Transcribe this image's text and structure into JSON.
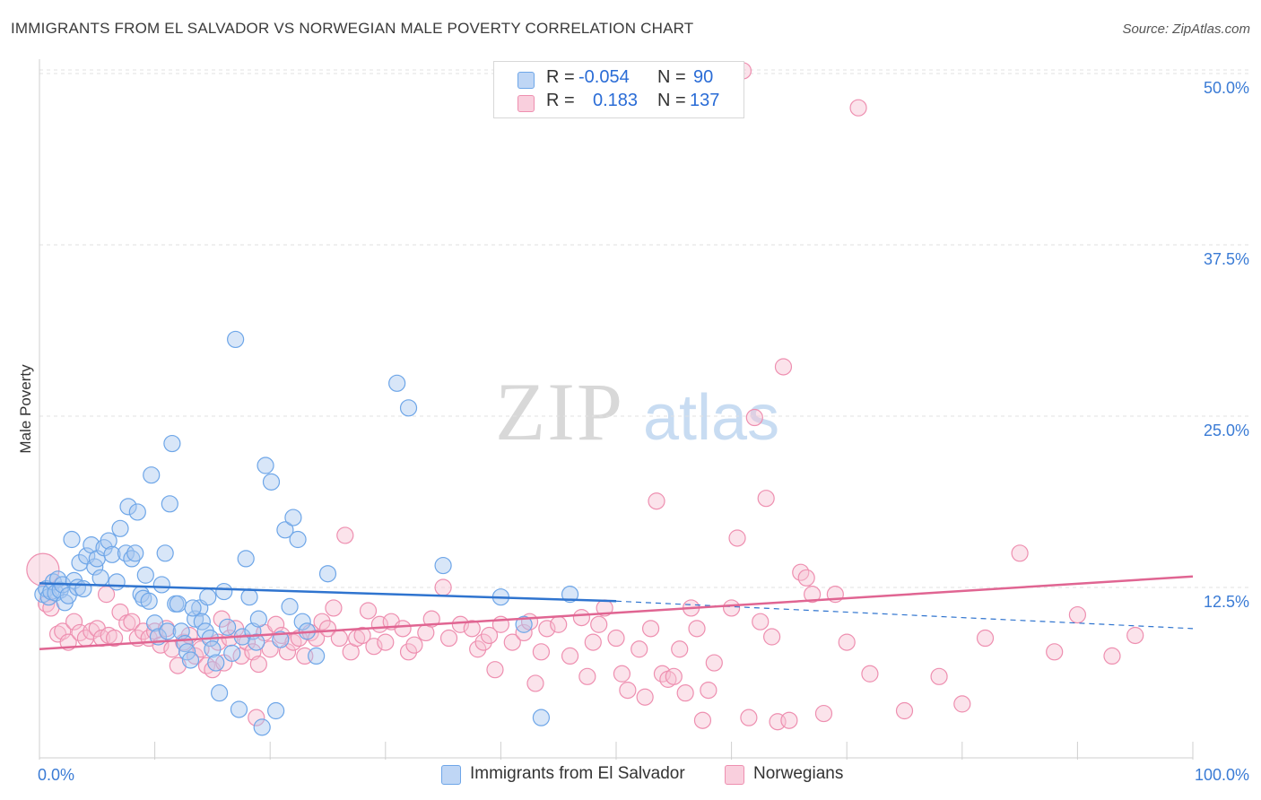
{
  "title": "IMMIGRANTS FROM EL SALVADOR VS NORWEGIAN MALE POVERTY CORRELATION CHART",
  "source": "Source: ZipAtlas.com",
  "watermark": {
    "zip": "ZIP",
    "atlas": "atlas"
  },
  "legend": {
    "rows": [
      {
        "r_label": "R =",
        "r_value": "-0.054",
        "n_label": "N =",
        "n_value": "90",
        "color": "#6ea6e8"
      },
      {
        "r_label": "R =",
        "r_value": "0.183",
        "n_label": "N =",
        "n_value": "137",
        "color": "#ee8fb0"
      }
    ]
  },
  "bottom_legend": [
    "Immigrants from El Salvador",
    "Norwegians"
  ],
  "colors": {
    "blue_fill": "#a9c8f0",
    "blue_stroke": "#6ea6e8",
    "blue_line": "#2f74cf",
    "pink_fill": "#f6c0d2",
    "pink_stroke": "#ee8fb0",
    "pink_line": "#e06592",
    "axis_label": "#3a7bd5"
  },
  "chart_data": {
    "type": "scatter",
    "title": "IMMIGRANTS FROM EL SALVADOR VS NORWEGIAN MALE POVERTY CORRELATION CHART",
    "xlabel": "",
    "ylabel": "Male Poverty",
    "xlim": [
      0,
      100
    ],
    "ylim": [
      0,
      50
    ],
    "x_tick_labels": [
      "0.0%",
      "100.0%"
    ],
    "y_ticks": [
      12.5,
      25.0,
      37.5,
      50.0
    ],
    "y_tick_labels": [
      "12.5%",
      "25.0%",
      "37.5%",
      "50.0%"
    ],
    "grid": true,
    "legend_position": "top-center",
    "series": [
      {
        "name": "Immigrants from El Salvador",
        "color": "#6ea6e8",
        "trend": {
          "x": [
            0,
            50
          ],
          "y": [
            12.8,
            11.5
          ],
          "dashed_to": [
            100,
            9.5
          ]
        },
        "points": [
          [
            0.3,
            12.0
          ],
          [
            0.6,
            12.4
          ],
          [
            0.8,
            11.8
          ],
          [
            1.0,
            12.2
          ],
          [
            1.2,
            12.9
          ],
          [
            1.4,
            12.1
          ],
          [
            1.6,
            13.1
          ],
          [
            1.8,
            12.3
          ],
          [
            2.0,
            12.7
          ],
          [
            2.2,
            11.4
          ],
          [
            2.5,
            11.9
          ],
          [
            2.8,
            16.0
          ],
          [
            3.0,
            13.0
          ],
          [
            3.3,
            12.5
          ],
          [
            3.5,
            14.3
          ],
          [
            3.8,
            12.4
          ],
          [
            4.1,
            14.8
          ],
          [
            4.5,
            15.6
          ],
          [
            4.8,
            14.0
          ],
          [
            5.0,
            14.6
          ],
          [
            5.3,
            13.2
          ],
          [
            5.6,
            15.4
          ],
          [
            6.0,
            15.9
          ],
          [
            6.3,
            14.9
          ],
          [
            6.7,
            12.9
          ],
          [
            7.0,
            16.8
          ],
          [
            7.5,
            15.0
          ],
          [
            7.7,
            18.4
          ],
          [
            8.0,
            14.6
          ],
          [
            8.3,
            15.0
          ],
          [
            8.5,
            18.0
          ],
          [
            8.8,
            12.0
          ],
          [
            9.0,
            11.7
          ],
          [
            9.2,
            13.4
          ],
          [
            9.5,
            11.5
          ],
          [
            9.7,
            20.7
          ],
          [
            10.0,
            9.9
          ],
          [
            10.3,
            8.9
          ],
          [
            10.6,
            12.7
          ],
          [
            10.9,
            15.0
          ],
          [
            11.1,
            9.3
          ],
          [
            11.3,
            18.6
          ],
          [
            11.5,
            23.0
          ],
          [
            11.8,
            11.3
          ],
          [
            12.0,
            11.3
          ],
          [
            12.3,
            9.3
          ],
          [
            12.6,
            8.4
          ],
          [
            12.8,
            7.8
          ],
          [
            13.1,
            7.2
          ],
          [
            13.5,
            10.2
          ],
          [
            13.9,
            11.0
          ],
          [
            14.1,
            10.0
          ],
          [
            14.4,
            9.3
          ],
          [
            14.6,
            11.8
          ],
          [
            14.8,
            8.8
          ],
          [
            13.3,
            11.0
          ],
          [
            15.0,
            8.0
          ],
          [
            15.3,
            7.0
          ],
          [
            15.6,
            4.8
          ],
          [
            16.0,
            12.2
          ],
          [
            16.3,
            9.6
          ],
          [
            16.7,
            7.7
          ],
          [
            17.0,
            30.6
          ],
          [
            17.3,
            3.6
          ],
          [
            17.6,
            8.9
          ],
          [
            17.9,
            14.6
          ],
          [
            18.2,
            11.8
          ],
          [
            18.5,
            9.3
          ],
          [
            18.8,
            8.5
          ],
          [
            19.0,
            10.2
          ],
          [
            19.3,
            2.3
          ],
          [
            19.6,
            21.4
          ],
          [
            20.1,
            20.2
          ],
          [
            20.5,
            3.5
          ],
          [
            20.9,
            8.7
          ],
          [
            21.3,
            16.7
          ],
          [
            21.7,
            11.1
          ],
          [
            22.0,
            17.6
          ],
          [
            22.4,
            16.0
          ],
          [
            22.8,
            10.0
          ],
          [
            23.2,
            9.3
          ],
          [
            24.0,
            7.5
          ],
          [
            25.0,
            13.5
          ],
          [
            31.0,
            27.4
          ],
          [
            32.0,
            25.6
          ],
          [
            35.0,
            14.1
          ],
          [
            40.0,
            11.8
          ],
          [
            46.0,
            12.0
          ],
          [
            42.0,
            9.8
          ],
          [
            43.5,
            3.0
          ]
        ]
      },
      {
        "name": "Norwegians",
        "color": "#ee8fb0",
        "trend": {
          "x": [
            0,
            100
          ],
          "y": [
            8.0,
            13.3
          ]
        },
        "points": [
          [
            0.3,
            13.8
          ],
          [
            0.6,
            11.3
          ],
          [
            1.0,
            11.0
          ],
          [
            1.6,
            9.1
          ],
          [
            2.0,
            9.3
          ],
          [
            2.5,
            8.5
          ],
          [
            3.0,
            10.0
          ],
          [
            3.5,
            9.2
          ],
          [
            4.0,
            8.8
          ],
          [
            4.5,
            9.3
          ],
          [
            5.0,
            9.5
          ],
          [
            5.4,
            8.8
          ],
          [
            6.0,
            9.0
          ],
          [
            6.5,
            8.8
          ],
          [
            7.0,
            10.7
          ],
          [
            7.6,
            9.9
          ],
          [
            8.0,
            10.0
          ],
          [
            8.5,
            8.8
          ],
          [
            9.0,
            9.3
          ],
          [
            9.5,
            8.8
          ],
          [
            10.0,
            9.3
          ],
          [
            10.5,
            8.3
          ],
          [
            11.0,
            9.5
          ],
          [
            11.5,
            8.0
          ],
          [
            12.0,
            6.8
          ],
          [
            12.5,
            8.5
          ],
          [
            13.0,
            9.0
          ],
          [
            13.5,
            7.5
          ],
          [
            14.0,
            8.0
          ],
          [
            14.5,
            6.8
          ],
          [
            15.0,
            6.5
          ],
          [
            15.5,
            8.5
          ],
          [
            16.0,
            7.0
          ],
          [
            16.5,
            8.8
          ],
          [
            17.0,
            9.5
          ],
          [
            17.5,
            7.5
          ],
          [
            18.0,
            8.5
          ],
          [
            18.5,
            7.8
          ],
          [
            19.0,
            6.9
          ],
          [
            19.5,
            9.2
          ],
          [
            20.0,
            8.0
          ],
          [
            20.5,
            9.8
          ],
          [
            21.0,
            9.0
          ],
          [
            21.5,
            7.8
          ],
          [
            22.0,
            8.5
          ],
          [
            22.5,
            8.8
          ],
          [
            23.0,
            7.5
          ],
          [
            23.5,
            9.2
          ],
          [
            24.0,
            8.8
          ],
          [
            24.5,
            10.0
          ],
          [
            25.0,
            9.5
          ],
          [
            25.5,
            11.0
          ],
          [
            26.0,
            8.8
          ],
          [
            26.5,
            16.3
          ],
          [
            27.0,
            7.8
          ],
          [
            27.5,
            8.8
          ],
          [
            28.0,
            9.0
          ],
          [
            28.5,
            10.8
          ],
          [
            29.0,
            8.2
          ],
          [
            29.5,
            9.8
          ],
          [
            30.0,
            8.5
          ],
          [
            30.5,
            10.0
          ],
          [
            31.5,
            9.5
          ],
          [
            32.0,
            7.8
          ],
          [
            32.5,
            8.3
          ],
          [
            33.5,
            9.2
          ],
          [
            34.0,
            10.2
          ],
          [
            35.0,
            12.5
          ],
          [
            35.5,
            8.8
          ],
          [
            36.5,
            9.8
          ],
          [
            37.5,
            9.5
          ],
          [
            38.0,
            8.0
          ],
          [
            38.5,
            8.5
          ],
          [
            39.0,
            9.0
          ],
          [
            39.5,
            6.5
          ],
          [
            40.0,
            9.8
          ],
          [
            41.0,
            8.5
          ],
          [
            42.0,
            9.2
          ],
          [
            42.5,
            10.0
          ],
          [
            43.0,
            5.5
          ],
          [
            43.5,
            7.8
          ],
          [
            44.0,
            9.5
          ],
          [
            45.0,
            9.8
          ],
          [
            46.0,
            7.5
          ],
          [
            47.0,
            10.3
          ],
          [
            47.5,
            6.0
          ],
          [
            48.0,
            8.5
          ],
          [
            48.5,
            9.8
          ],
          [
            49.0,
            11.0
          ],
          [
            50.0,
            8.8
          ],
          [
            50.5,
            6.2
          ],
          [
            51.0,
            5.0
          ],
          [
            52.0,
            8.0
          ],
          [
            52.5,
            4.5
          ],
          [
            53.0,
            9.5
          ],
          [
            53.5,
            18.8
          ],
          [
            54.0,
            6.2
          ],
          [
            54.5,
            5.8
          ],
          [
            55.0,
            6.0
          ],
          [
            55.5,
            8.0
          ],
          [
            56.0,
            4.8
          ],
          [
            56.5,
            11.0
          ],
          [
            57.0,
            9.5
          ],
          [
            57.5,
            2.8
          ],
          [
            58.0,
            5.0
          ],
          [
            58.5,
            7.0
          ],
          [
            60.0,
            11.0
          ],
          [
            60.5,
            16.1
          ],
          [
            61.0,
            50.2
          ],
          [
            61.5,
            3.0
          ],
          [
            62.0,
            24.9
          ],
          [
            62.5,
            10.0
          ],
          [
            63.0,
            19.0
          ],
          [
            63.5,
            8.9
          ],
          [
            64.0,
            2.7
          ],
          [
            64.5,
            28.6
          ],
          [
            65.0,
            2.8
          ],
          [
            66.0,
            13.6
          ],
          [
            66.5,
            13.2
          ],
          [
            67.0,
            12.0
          ],
          [
            68.0,
            3.3
          ],
          [
            69.0,
            12.0
          ],
          [
            70.0,
            8.5
          ],
          [
            71.0,
            47.5
          ],
          [
            72.0,
            6.2
          ],
          [
            75.0,
            3.5
          ],
          [
            85.0,
            15.0
          ],
          [
            88.0,
            7.8
          ],
          [
            80.0,
            4.0
          ],
          [
            78.0,
            6.0
          ],
          [
            82.0,
            8.8
          ],
          [
            90.0,
            10.5
          ],
          [
            93.0,
            7.5
          ],
          [
            95.0,
            9.0
          ],
          [
            15.8,
            10.2
          ],
          [
            5.8,
            12.0
          ],
          [
            18.8,
            3.0
          ]
        ]
      }
    ]
  }
}
